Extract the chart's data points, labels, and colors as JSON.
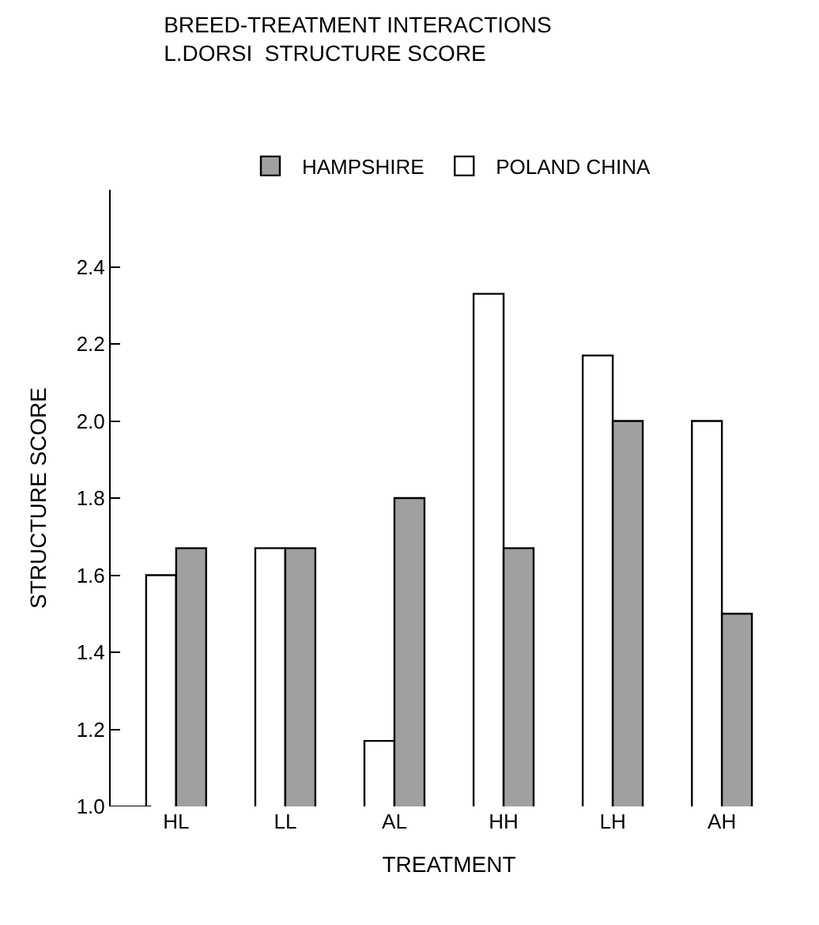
{
  "chart_data": {
    "type": "bar",
    "title": "BREED-TREATMENT INTERACTIONS\nL.DORSI  STRUCTURE SCORE",
    "xlabel": "TREATMENT",
    "ylabel": "STRUCTURE SCORE",
    "categories": [
      "HL",
      "LL",
      "AL",
      "HH",
      "LH",
      "AH"
    ],
    "series": [
      {
        "name": "POLAND CHINA",
        "color": "#ffffff",
        "values": [
          1.6,
          1.67,
          1.17,
          2.33,
          2.17,
          2.0
        ]
      },
      {
        "name": "HAMPSHIRE",
        "color": "#a0a0a0",
        "values": [
          1.67,
          1.67,
          1.8,
          1.67,
          2.0,
          1.5
        ]
      }
    ],
    "ylim": [
      1.0,
      2.6
    ],
    "yticks": [
      {
        "value": 1.0,
        "label": "1.0"
      },
      {
        "value": 1.2,
        "label": "1.2"
      },
      {
        "value": 1.4,
        "label": "1.4"
      },
      {
        "value": 1.6,
        "label": "1.6"
      },
      {
        "value": 1.8,
        "label": "1.8"
      },
      {
        "value": 2.0,
        "label": "2.0"
      },
      {
        "value": 2.2,
        "label": "2.2"
      },
      {
        "value": 2.4,
        "label": "2.4"
      }
    ],
    "grid": false,
    "legend": "top"
  }
}
